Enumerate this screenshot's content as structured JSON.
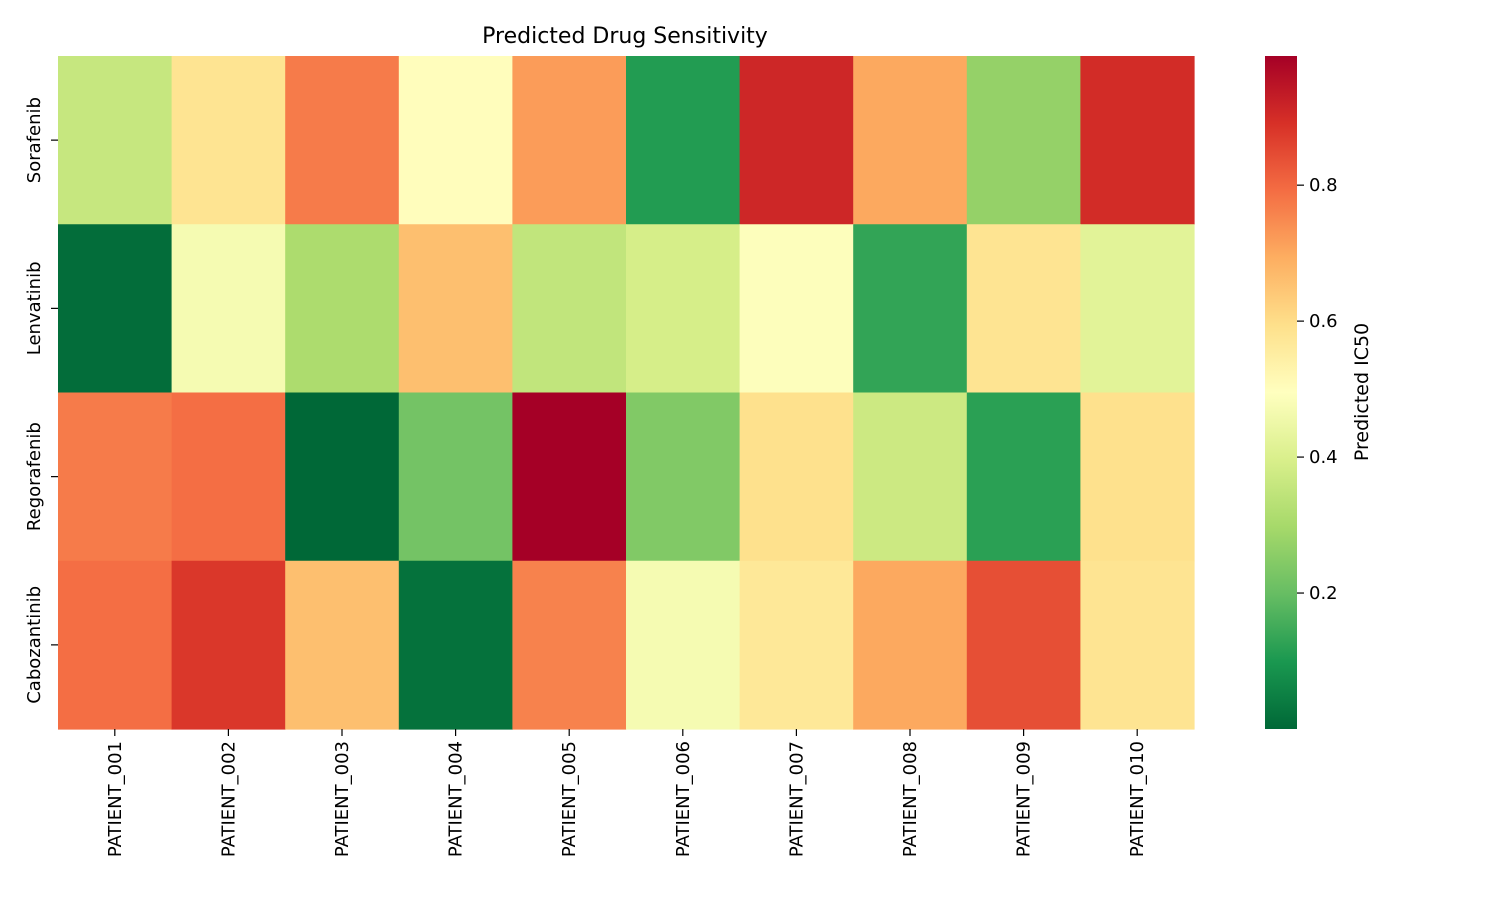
{
  "chart_data": {
    "type": "heatmap",
    "title": "Predicted Drug Sensitivity",
    "xlabel": "",
    "ylabel": "",
    "colorbar_label": "Predicted IC50",
    "colormap": "RdYlGn_r",
    "grid": false,
    "x_categories": [
      "PATIENT_001",
      "PATIENT_002",
      "PATIENT_003",
      "PATIENT_004",
      "PATIENT_005",
      "PATIENT_006",
      "PATIENT_007",
      "PATIENT_008",
      "PATIENT_009",
      "PATIENT_010"
    ],
    "y_categories": [
      "Sorafenib",
      "Lenvatinib",
      "Regorafenib",
      "Cabozantinib"
    ],
    "values": [
      [
        0.36,
        0.58,
        0.77,
        0.5,
        0.72,
        0.11,
        0.91,
        0.7,
        0.27,
        0.9
      ],
      [
        0.01,
        0.47,
        0.31,
        0.66,
        0.35,
        0.39,
        0.49,
        0.13,
        0.58,
        0.42
      ],
      [
        0.77,
        0.79,
        0.0,
        0.22,
        0.99,
        0.24,
        0.59,
        0.37,
        0.12,
        0.59
      ],
      [
        0.79,
        0.88,
        0.66,
        0.02,
        0.76,
        0.47,
        0.57,
        0.7,
        0.84,
        0.58
      ]
    ],
    "colorbar_range": [
      0.0,
      0.99
    ],
    "colorbar_ticks": [
      "0.2",
      "0.4",
      "0.6",
      "0.8"
    ]
  }
}
